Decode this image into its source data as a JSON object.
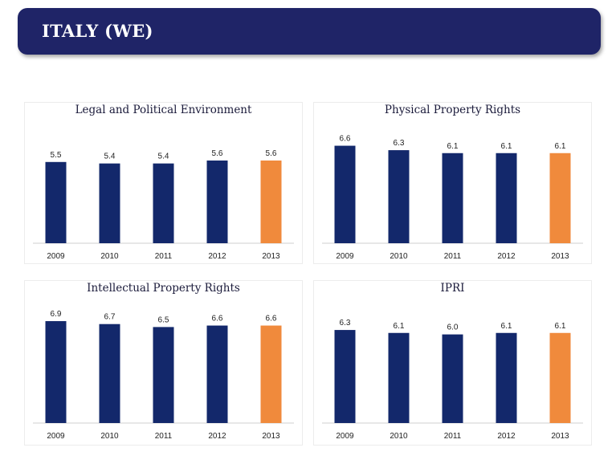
{
  "header": {
    "title": "ITALY (WE)"
  },
  "colors": {
    "banner": "#1f2467",
    "bar": "#13286b",
    "highlight": "#f08a3c",
    "axis": "#cfcfcf"
  },
  "chart_data": [
    {
      "type": "bar",
      "title": "Legal and Political Environment",
      "categories": [
        "2009",
        "2010",
        "2011",
        "2012",
        "2013"
      ],
      "values": [
        5.5,
        5.4,
        5.4,
        5.6,
        5.6
      ],
      "value_labels": [
        "5.5",
        "5.4",
        "5.4",
        "5.6",
        "5.6"
      ],
      "highlight_index": 4,
      "ylim": [
        0,
        7.5
      ],
      "grid": false
    },
    {
      "type": "bar",
      "title": "Physical Property Rights",
      "categories": [
        "2009",
        "2010",
        "2011",
        "2012",
        "2013"
      ],
      "values": [
        6.6,
        6.3,
        6.1,
        6.1,
        6.1
      ],
      "value_labels": [
        "6.6",
        "6.3",
        "6.1",
        "6.1",
        "6.1"
      ],
      "highlight_index": 4,
      "ylim": [
        0,
        7.5
      ],
      "grid": false
    },
    {
      "type": "bar",
      "title": "Intellectual Property Rights",
      "categories": [
        "2009",
        "2010",
        "2011",
        "2012",
        "2013"
      ],
      "values": [
        6.9,
        6.7,
        6.5,
        6.6,
        6.6
      ],
      "value_labels": [
        "6.9",
        "6.7",
        "6.5",
        "6.6",
        "6.6"
      ],
      "highlight_index": 4,
      "ylim": [
        0,
        7.5
      ],
      "grid": false
    },
    {
      "type": "bar",
      "title": "IPRI",
      "categories": [
        "2009",
        "2010",
        "2011",
        "2012",
        "2013"
      ],
      "values": [
        6.3,
        6.1,
        6.0,
        6.1,
        6.1
      ],
      "value_labels": [
        "6.3",
        "6.1",
        "6.0",
        "6.1",
        "6.1"
      ],
      "highlight_index": 4,
      "ylim": [
        0,
        7.5
      ],
      "grid": false
    }
  ]
}
